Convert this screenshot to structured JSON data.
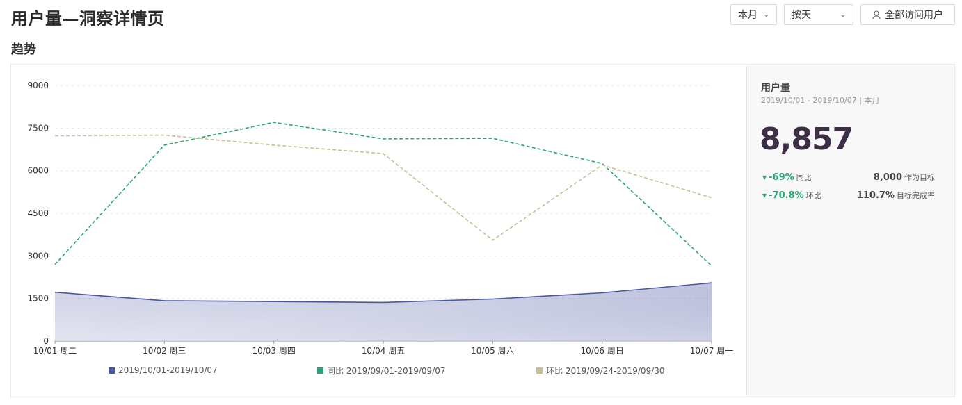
{
  "header": {
    "title": "用户量—洞察详情页",
    "range_select": "本月",
    "group_select": "按天",
    "all_users_button": "全部访问用户"
  },
  "section": {
    "title": "趋势"
  },
  "summary": {
    "metric_name": "用户量",
    "period": "2019/10/01 - 2019/10/07 | 本月",
    "value": "8,857",
    "yoy_value": "-69%",
    "yoy_label": "同比",
    "mom_value": "-70.8%",
    "mom_label": "环比",
    "target_value": "8,000",
    "target_label": "作为目标",
    "completion_value": "110.7%",
    "completion_label": "目标完成率"
  },
  "colors": {
    "current": "#4a56a0",
    "yoy": "#2aa578",
    "mom": "#c8bf95",
    "down": "#2aa572"
  },
  "chart_data": {
    "type": "line",
    "categories": [
      "10/01 周二",
      "10/02 周三",
      "10/03 周四",
      "10/04 周五",
      "10/05 周六",
      "10/06 周日",
      "10/07 周一"
    ],
    "ylim": [
      0,
      9000
    ],
    "yticks": [
      "0",
      "1500",
      "3000",
      "4500",
      "6000",
      "7500",
      "9000"
    ],
    "grid": true,
    "legend_position": "bottom",
    "series": [
      {
        "name": "2019/10/01-2019/10/07",
        "style": "area",
        "values": [
          1720,
          1420,
          1390,
          1360,
          1480,
          1700,
          2050
        ]
      },
      {
        "name": "同比 2019/09/01-2019/09/07",
        "style": "dashed",
        "values": [
          2700,
          6900,
          7700,
          7120,
          7140,
          6250,
          2650
        ]
      },
      {
        "name": "环比 2019/09/24-2019/09/30",
        "style": "dashed",
        "values": [
          7230,
          7250,
          6900,
          6600,
          3550,
          6200,
          5050
        ]
      }
    ]
  }
}
